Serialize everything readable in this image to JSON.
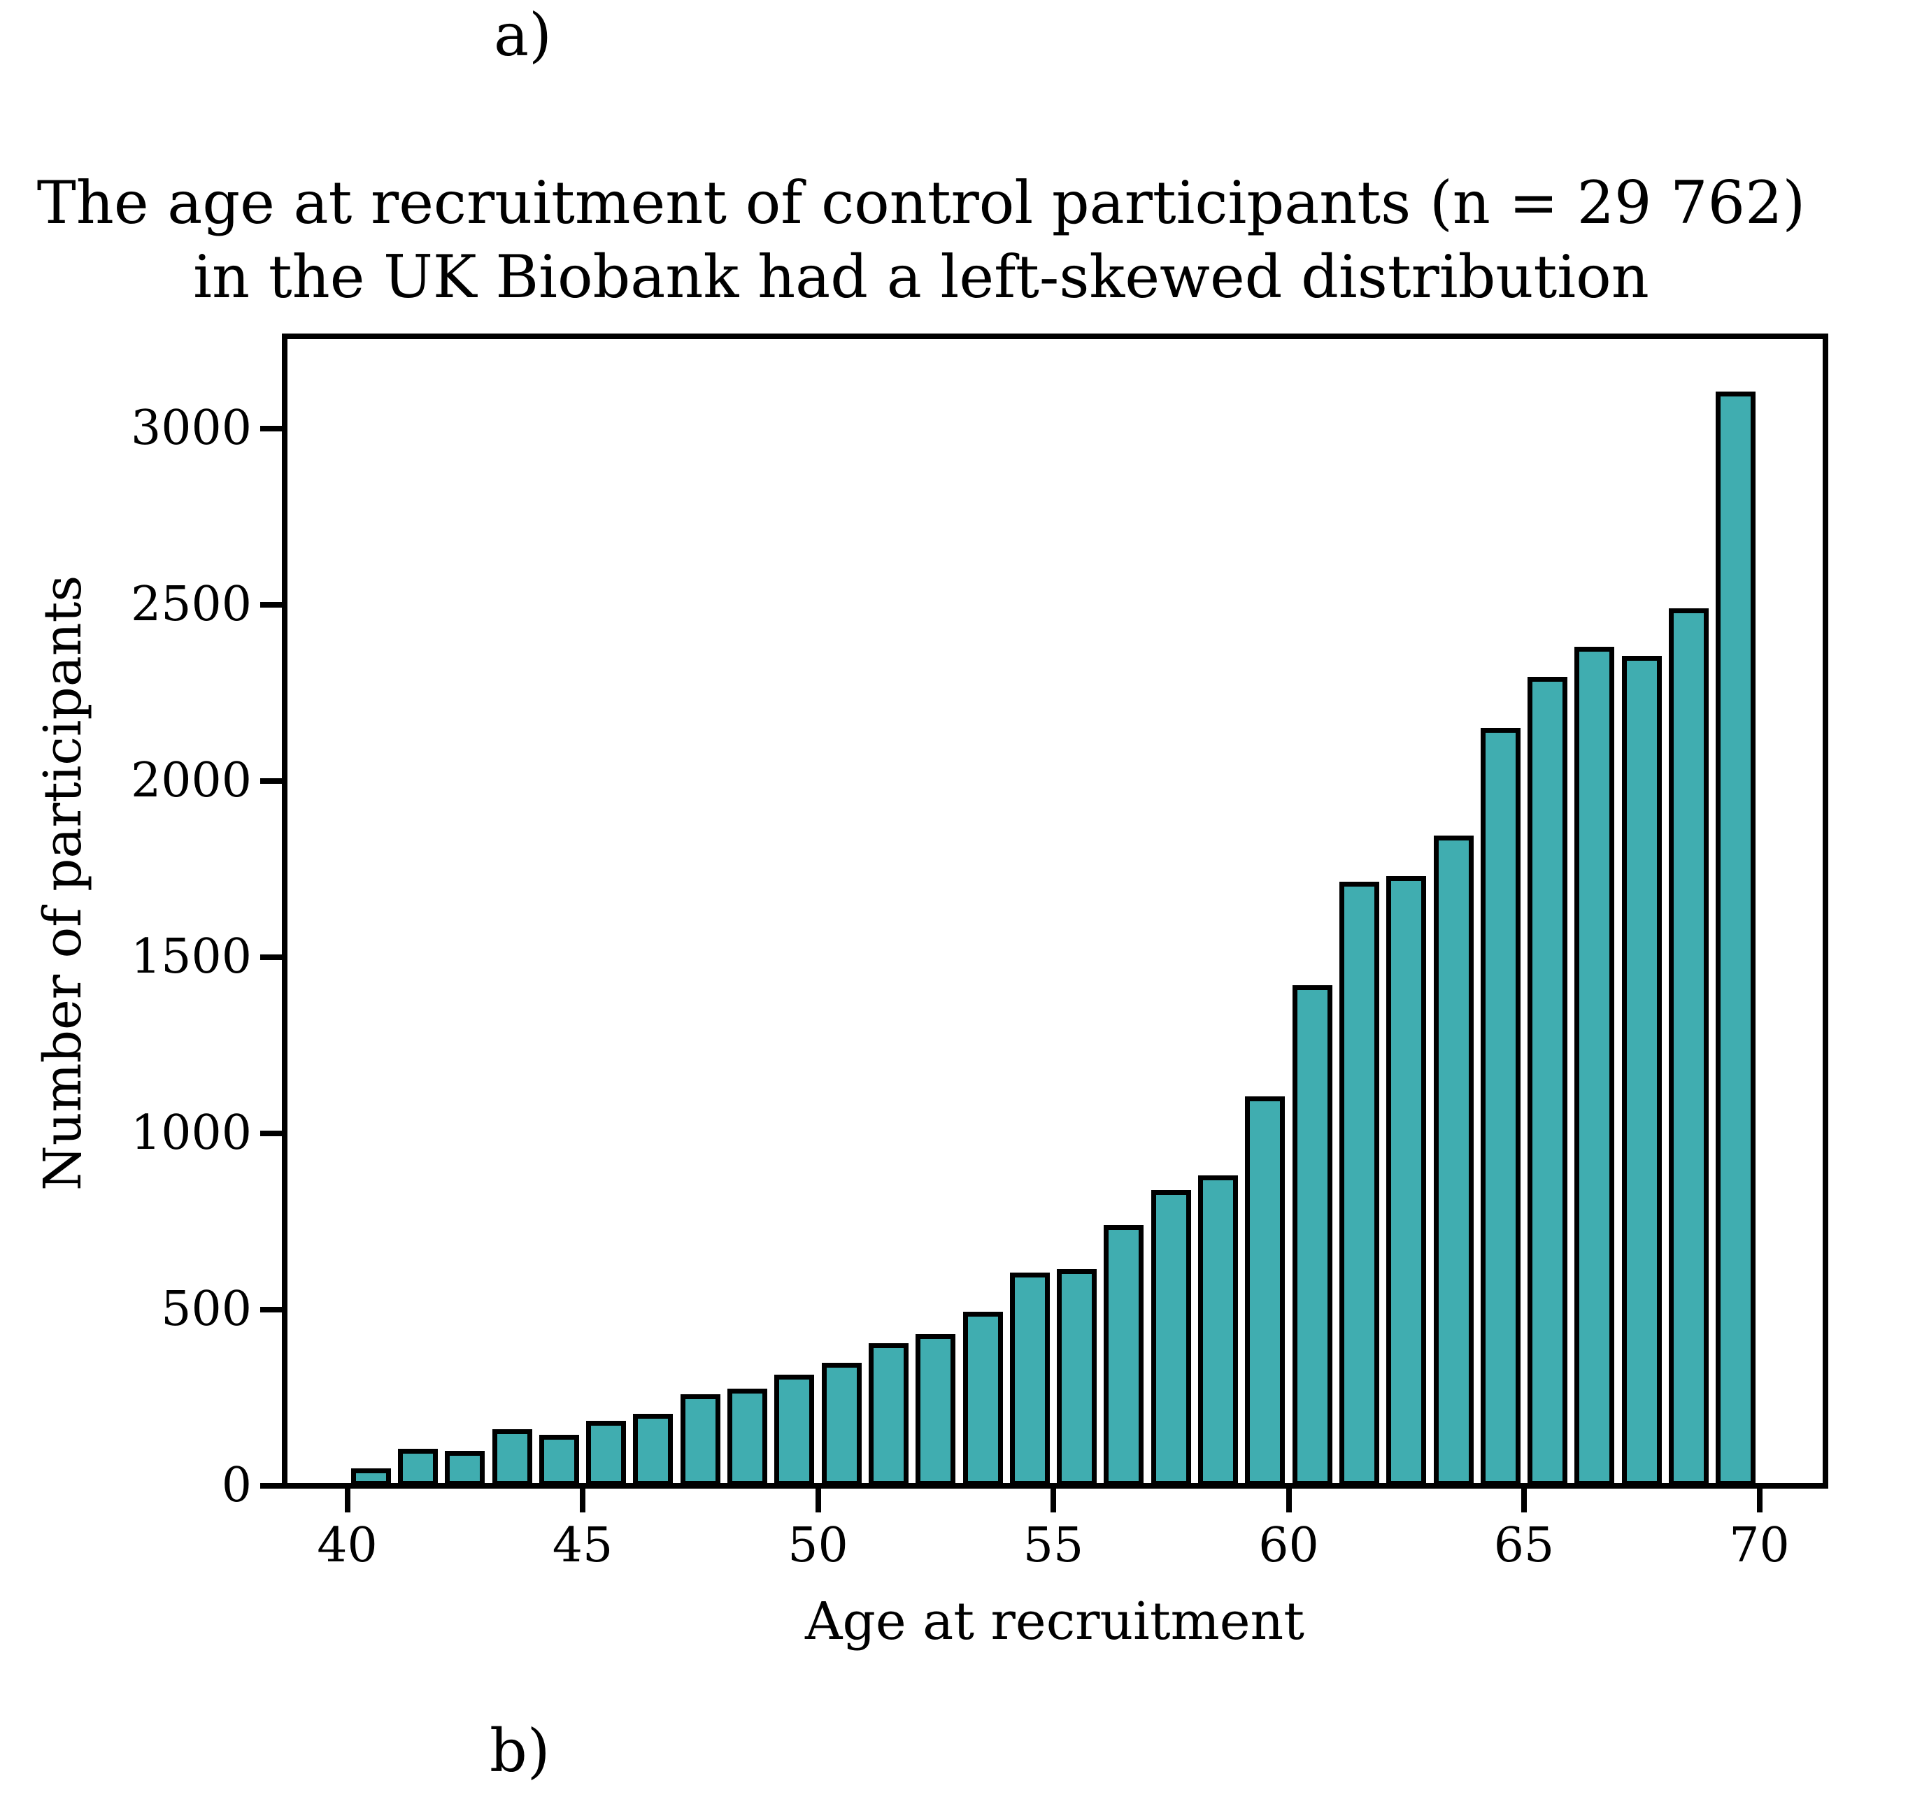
{
  "figure": {
    "panel_label_top": "a)",
    "panel_label_bottom": "b)"
  },
  "chart_data": {
    "type": "bar",
    "title_line1": "The age at recruitment of control participants (n = 29 762)",
    "title_line2": "in the UK Biobank had a left-skewed distribution",
    "xlabel": "Age at recruitment",
    "ylabel": "Number of participants",
    "n_total_label": "n = 29 762",
    "x_tick_values": [
      40,
      45,
      50,
      55,
      60,
      65,
      70
    ],
    "y_tick_values": [
      0,
      500,
      1000,
      1500,
      2000,
      2500,
      3000
    ],
    "xlim": [
      38.7,
      71.4
    ],
    "ylim": [
      0,
      3264
    ],
    "grid": false,
    "legend_position": "none",
    "bin_width_years": 1,
    "categories": [
      40,
      41,
      42,
      43,
      44,
      45,
      46,
      47,
      48,
      49,
      50,
      51,
      52,
      53,
      54,
      55,
      56,
      57,
      58,
      59,
      60,
      61,
      62,
      63,
      64,
      65,
      66,
      67,
      68,
      69
    ],
    "values": [
      50,
      105,
      100,
      160,
      145,
      185,
      205,
      260,
      275,
      315,
      350,
      405,
      430,
      495,
      605,
      615,
      740,
      840,
      880,
      1105,
      1420,
      1715,
      1730,
      1845,
      2150,
      2295,
      2380,
      2355,
      2490,
      3105
    ],
    "bar_color": "#40adb0",
    "bar_edge_color": "#000000",
    "axis_color": "#000000"
  }
}
